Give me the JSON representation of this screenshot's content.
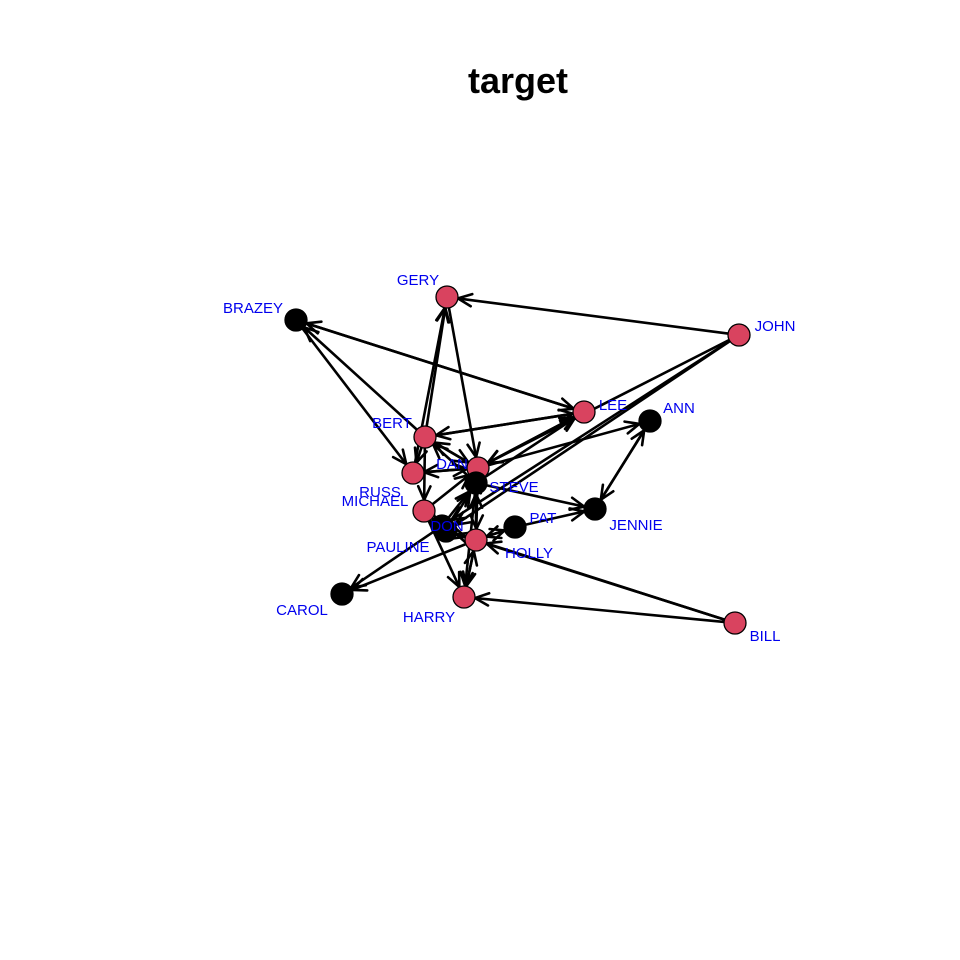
{
  "title": "target",
  "colors": {
    "female": "#d9435f",
    "male": "#000000",
    "edge": "#000000",
    "label": "#0000ee"
  },
  "nodes": [
    {
      "id": "BRAZEY",
      "label": "BRAZEY",
      "group": "male"
    },
    {
      "id": "GERY",
      "label": "GERY",
      "group": "female"
    },
    {
      "id": "JOHN",
      "label": "JOHN",
      "group": "female"
    },
    {
      "id": "LEE",
      "label": "LEE",
      "group": "female"
    },
    {
      "id": "ANN",
      "label": "ANN",
      "group": "male"
    },
    {
      "id": "BERT",
      "label": "BERT",
      "group": "female"
    },
    {
      "id": "DAN",
      "label": "DAN",
      "group": "female"
    },
    {
      "id": "RUSS",
      "label": "RUSS",
      "group": "female"
    },
    {
      "id": "STEVE",
      "label": "STEVE",
      "group": "male"
    },
    {
      "id": "MICHAEL",
      "label": "MICHAEL",
      "group": "female"
    },
    {
      "id": "JENNIE",
      "label": "JENNIE",
      "group": "male"
    },
    {
      "id": "PAT",
      "label": "PAT",
      "group": "male"
    },
    {
      "id": "DON",
      "label": "DON",
      "group": "male"
    },
    {
      "id": "PAULINE",
      "label": "PAULINE",
      "group": "male"
    },
    {
      "id": "HOLLY",
      "label": "HOLLY",
      "group": "female"
    },
    {
      "id": "CAROL",
      "label": "CAROL",
      "group": "male"
    },
    {
      "id": "HARRY",
      "label": "HARRY",
      "group": "female"
    },
    {
      "id": "BILL",
      "label": "BILL",
      "group": "female"
    }
  ],
  "edges": [
    {
      "source": "JOHN",
      "target": "GERY"
    },
    {
      "source": "JOHN",
      "target": "DAN"
    },
    {
      "source": "JOHN",
      "target": "PAULINE"
    },
    {
      "source": "JOHN",
      "target": "DON"
    },
    {
      "source": "BERT",
      "target": "BRAZEY"
    },
    {
      "source": "BERT",
      "target": "GERY"
    },
    {
      "source": "BERT",
      "target": "LEE"
    },
    {
      "source": "BERT",
      "target": "RUSS"
    },
    {
      "source": "BERT",
      "target": "MICHAEL"
    },
    {
      "source": "BERT",
      "target": "DAN"
    },
    {
      "source": "BRAZEY",
      "target": "LEE"
    },
    {
      "source": "BRAZEY",
      "target": "RUSS"
    },
    {
      "source": "LEE",
      "target": "BRAZEY"
    },
    {
      "source": "LEE",
      "target": "BERT"
    },
    {
      "source": "LEE",
      "target": "DAN"
    },
    {
      "source": "GERY",
      "target": "DAN"
    },
    {
      "source": "RUSS",
      "target": "GERY"
    },
    {
      "source": "RUSS",
      "target": "DAN"
    },
    {
      "source": "DAN",
      "target": "RUSS"
    },
    {
      "source": "DAN",
      "target": "LEE"
    },
    {
      "source": "DAN",
      "target": "BERT"
    },
    {
      "source": "DAN",
      "target": "ANN"
    },
    {
      "source": "DAN",
      "target": "HOLLY"
    },
    {
      "source": "ANN",
      "target": "JENNIE"
    },
    {
      "source": "JENNIE",
      "target": "ANN"
    },
    {
      "source": "STEVE",
      "target": "JENNIE"
    },
    {
      "source": "STEVE",
      "target": "LEE"
    },
    {
      "source": "STEVE",
      "target": "BERT"
    },
    {
      "source": "STEVE",
      "target": "HARRY"
    },
    {
      "source": "STEVE",
      "target": "DAN"
    },
    {
      "source": "PAT",
      "target": "JENNIE"
    },
    {
      "source": "PAT",
      "target": "HOLLY"
    },
    {
      "source": "HOLLY",
      "target": "PAT"
    },
    {
      "source": "HOLLY",
      "target": "HARRY"
    },
    {
      "source": "HOLLY",
      "target": "STEVE"
    },
    {
      "source": "HOLLY",
      "target": "CAROL"
    },
    {
      "source": "HARRY",
      "target": "HOLLY"
    },
    {
      "source": "MICHAEL",
      "target": "HARRY"
    },
    {
      "source": "MICHAEL",
      "target": "DAN"
    },
    {
      "source": "MICHAEL",
      "target": "DON"
    },
    {
      "source": "DON",
      "target": "STEVE"
    },
    {
      "source": "DON",
      "target": "HOLLY"
    },
    {
      "source": "PAULINE",
      "target": "STEVE"
    },
    {
      "source": "PAULINE",
      "target": "CAROL"
    },
    {
      "source": "BILL",
      "target": "HARRY"
    },
    {
      "source": "BILL",
      "target": "HOLLY"
    },
    {
      "source": "BILL",
      "target": "DON"
    }
  ]
}
